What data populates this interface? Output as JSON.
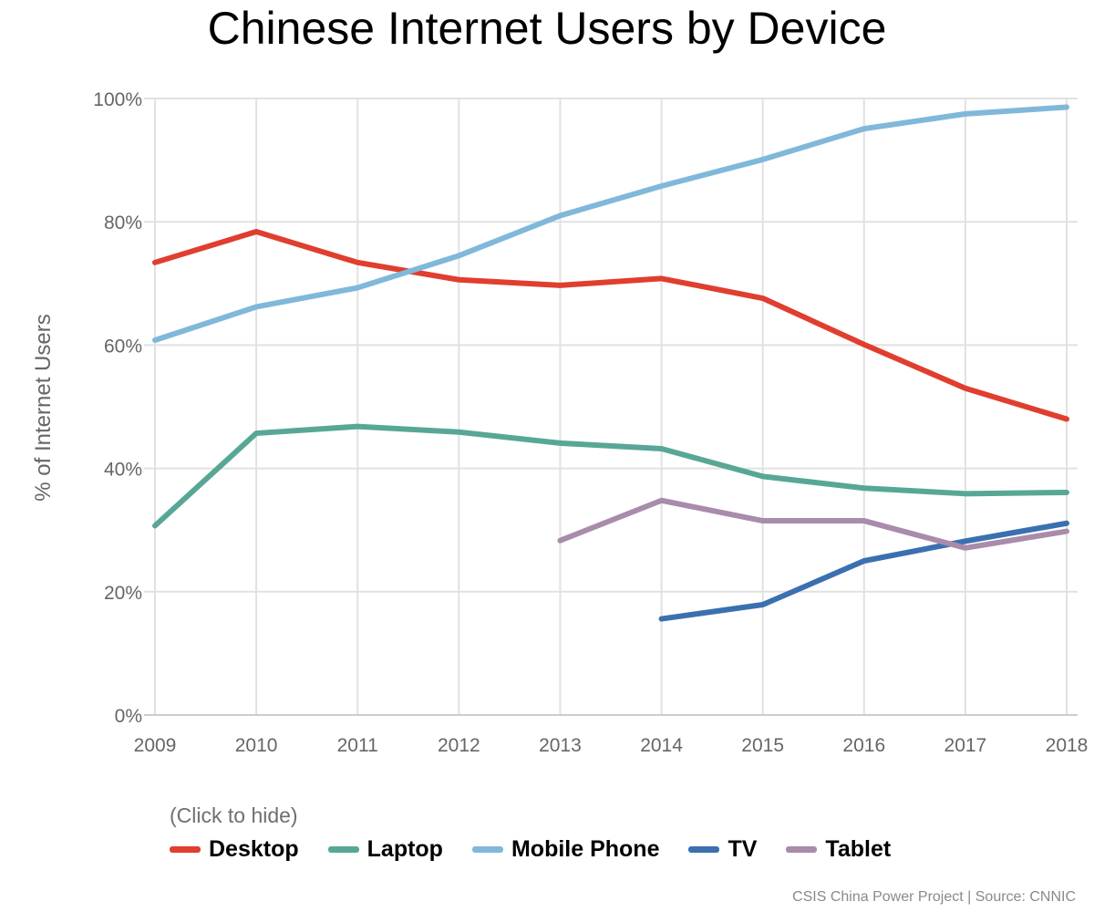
{
  "chart_data": {
    "type": "line",
    "title": "Chinese Internet Users by Device",
    "xlabel": "",
    "ylabel": "% of Internet Users",
    "x": [
      2009,
      2010,
      2011,
      2012,
      2013,
      2014,
      2015,
      2016,
      2017,
      2018
    ],
    "ylim": [
      0,
      100
    ],
    "yticks": [
      0,
      20,
      40,
      60,
      80,
      100
    ],
    "ytick_labels": [
      "0%",
      "20%",
      "40%",
      "60%",
      "80%",
      "100%"
    ],
    "grid": true,
    "series": [
      {
        "name": "Desktop",
        "color": "#e03e2f",
        "values": [
          73.4,
          78.4,
          73.4,
          70.6,
          69.7,
          70.8,
          67.6,
          60.1,
          53.0,
          48.0
        ]
      },
      {
        "name": "Laptop",
        "color": "#58a796",
        "values": [
          30.7,
          45.7,
          46.8,
          45.9,
          44.1,
          43.2,
          38.7,
          36.8,
          35.9,
          36.1
        ]
      },
      {
        "name": "Mobile Phone",
        "color": "#80b8da",
        "values": [
          60.8,
          66.2,
          69.3,
          74.5,
          81.0,
          85.8,
          90.1,
          95.1,
          97.5,
          98.6
        ]
      },
      {
        "name": "TV",
        "color": "#3b70b0",
        "values": [
          null,
          null,
          null,
          null,
          null,
          15.6,
          17.9,
          25.0,
          28.2,
          31.1
        ]
      },
      {
        "name": "Tablet",
        "color": "#a98bab",
        "values": [
          null,
          null,
          null,
          null,
          28.3,
          34.8,
          31.5,
          31.5,
          27.1,
          29.8
        ]
      }
    ],
    "legend_position": "bottom-left",
    "legend_hint": "(Click to hide)",
    "source": "CSIS China Power Project | Source: CNNIC"
  }
}
